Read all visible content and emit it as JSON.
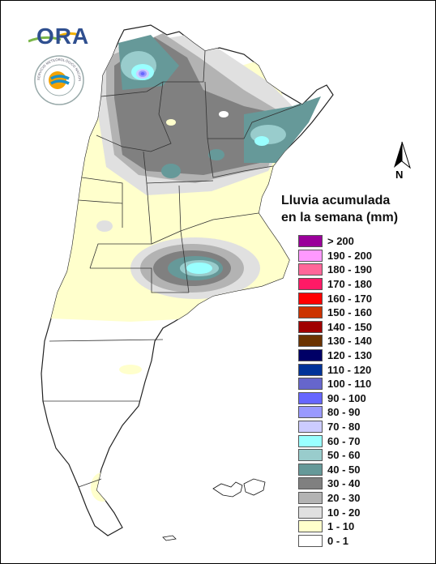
{
  "map": {
    "title_line1": "Lluvia acumulada",
    "title_line2": "en la semana (mm)",
    "north_label": "N",
    "logo_text": "ORA",
    "seal_text": "SERVICIO METEOROLÓGICO NACIONAL · ARGENTINA"
  },
  "legend": [
    {
      "label": "> 200",
      "color": "#9a009a"
    },
    {
      "label": "190 - 200",
      "color": "#ff99ff"
    },
    {
      "label": "180 - 190",
      "color": "#ff6699"
    },
    {
      "label": "170 - 180",
      "color": "#ff1a66"
    },
    {
      "label": "160 - 170",
      "color": "#ff0000"
    },
    {
      "label": "150 - 160",
      "color": "#cc3300"
    },
    {
      "label": "140 - 150",
      "color": "#a00000"
    },
    {
      "label": "130 - 140",
      "color": "#6b3300"
    },
    {
      "label": "120 - 130",
      "color": "#000066"
    },
    {
      "label": "110 - 120",
      "color": "#003399"
    },
    {
      "label": "100 - 110",
      "color": "#6666cc"
    },
    {
      "label": "90 - 100",
      "color": "#6666ff"
    },
    {
      "label": "80 - 90",
      "color": "#9999ff"
    },
    {
      "label": "70 - 80",
      "color": "#ccccff"
    },
    {
      "label": "60 - 70",
      "color": "#99ffff"
    },
    {
      "label": "50 - 60",
      "color": "#99cccc"
    },
    {
      "label": "40 - 50",
      "color": "#669999"
    },
    {
      "label": "30 - 40",
      "color": "#808080"
    },
    {
      "label": "20 - 30",
      "color": "#b3b3b3"
    },
    {
      "label": "10 - 20",
      "color": "#e0e0e0"
    },
    {
      "label": "1 - 10",
      "color": "#ffffcc"
    },
    {
      "label": "0 - 1",
      "color": "#ffffff"
    }
  ]
}
